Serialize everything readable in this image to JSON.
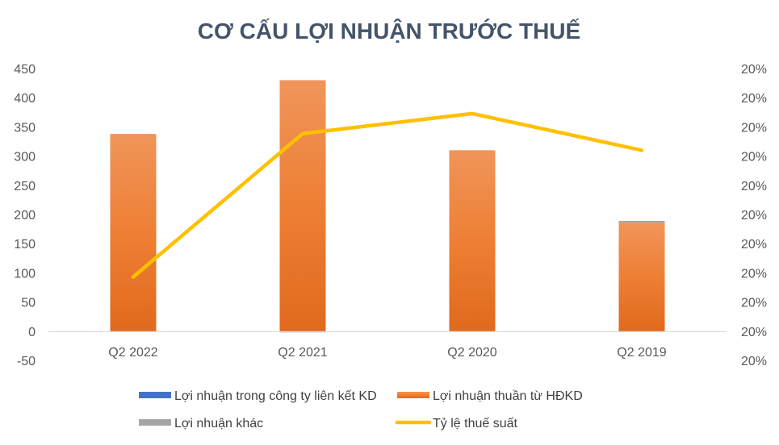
{
  "chart_data": {
    "type": "bar",
    "title": "CƠ CẤU LỢI NHUẬN TRƯỚC THUẾ",
    "categories": [
      "Q2 2022",
      "Q2 2021",
      "Q2 2020",
      "Q2 2019"
    ],
    "y_ticks": [
      "450",
      "400",
      "350",
      "300",
      "250",
      "200",
      "150",
      "100",
      "50",
      "0",
      "-50"
    ],
    "ylim": [
      -50,
      450
    ],
    "y2_ticks": [
      "20%",
      "20%",
      "20%",
      "20%",
      "20%",
      "20%",
      "20%",
      "20%",
      "20%",
      "20%",
      "20%"
    ],
    "series": [
      {
        "name": "Lợi nhuận trong công ty liên kết KD",
        "kind": "bar",
        "color": "#4472c4",
        "values": [
          0,
          0,
          0,
          0
        ]
      },
      {
        "name": "Lợi nhuận thuần từ HĐKD",
        "kind": "bar",
        "color": "#ed7d31",
        "values": [
          338,
          430,
          310,
          186
        ]
      },
      {
        "name": "Lợi nhuận khác",
        "kind": "bar",
        "color": "#a5a5a5",
        "values": [
          0,
          -2,
          0,
          3
        ]
      },
      {
        "name": "Tỷ lệ thuế suất",
        "kind": "line",
        "axis": "secondary",
        "color": "#ffc000",
        "values": [
          0.195,
          0.2036,
          0.2048,
          0.2026
        ]
      }
    ],
    "secondary_range": [
      0.19,
      0.2075
    ],
    "grid": false,
    "legend_position": "bottom"
  }
}
